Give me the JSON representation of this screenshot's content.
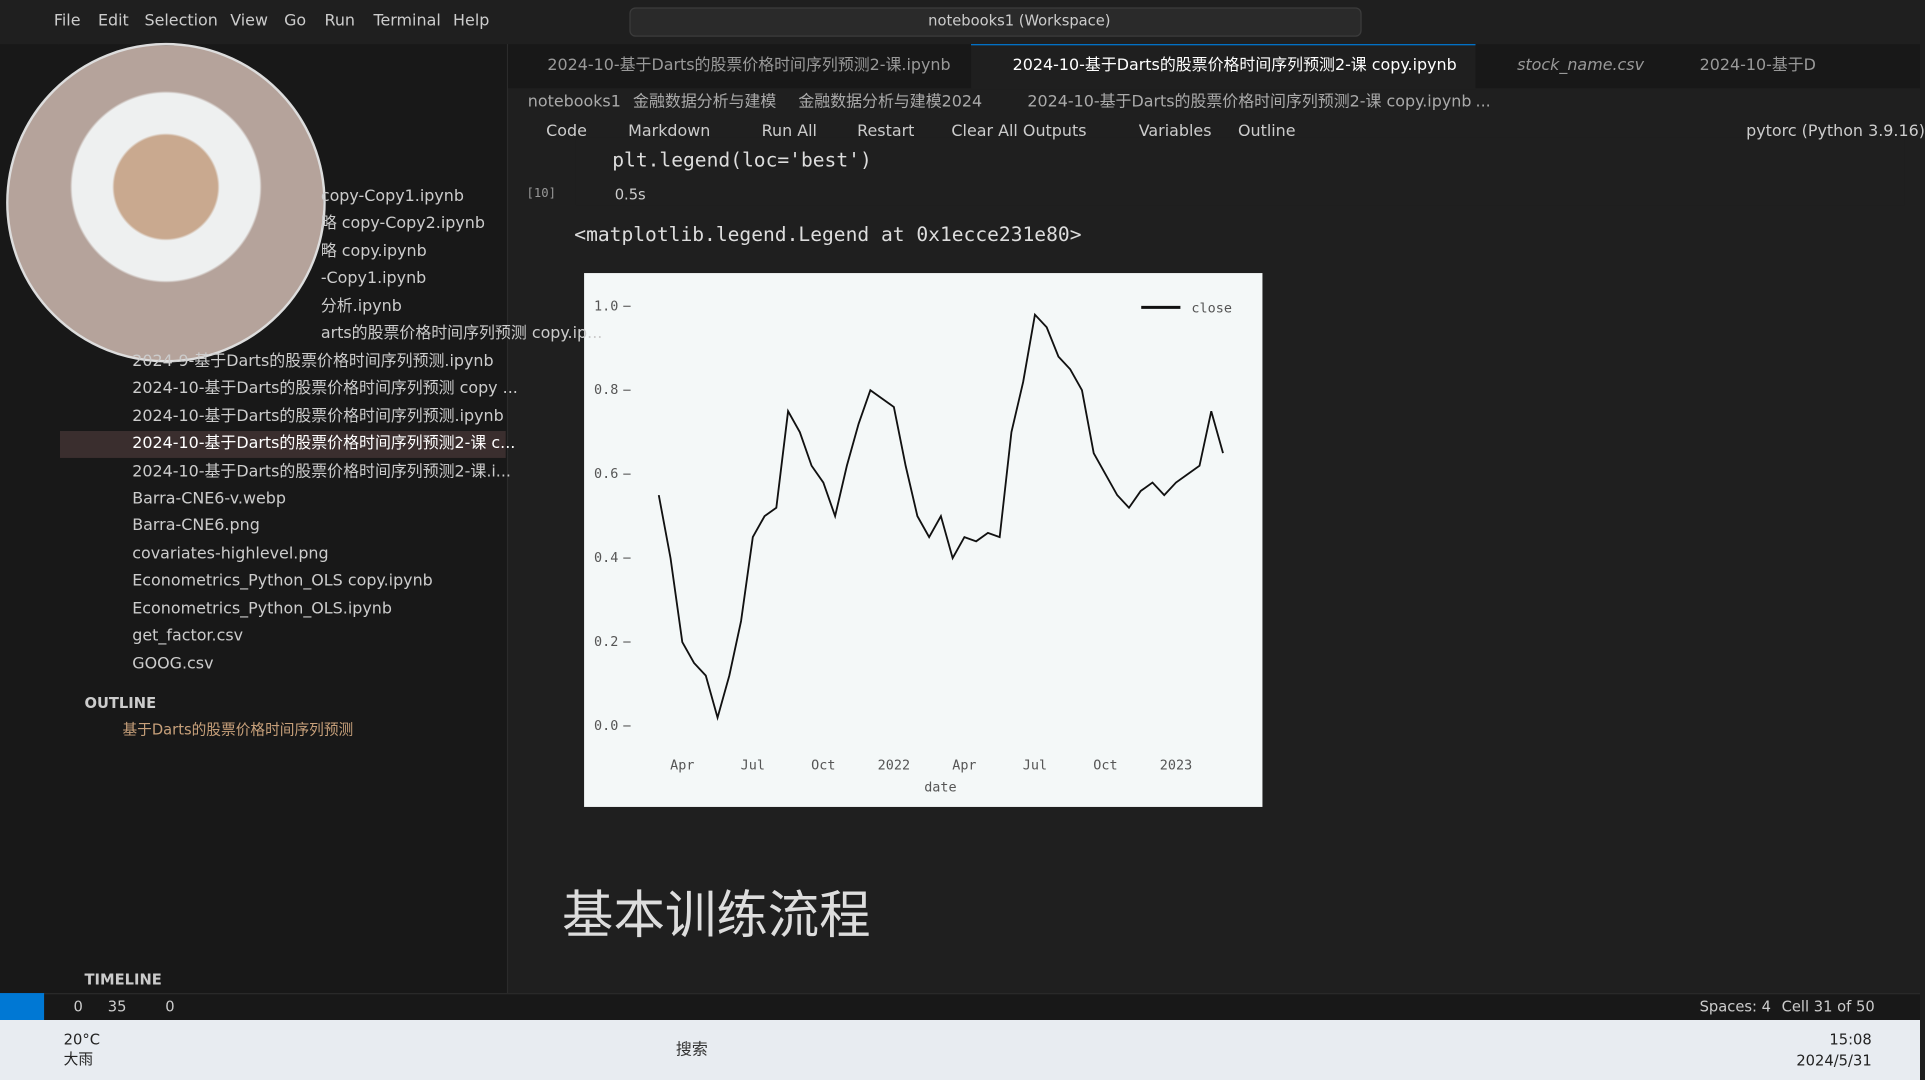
{
  "menu": [
    "File",
    "Edit",
    "Selection",
    "View",
    "Go",
    "Run",
    "Terminal",
    "Help"
  ],
  "search": "notebooks1 (Workspace)",
  "tabs": [
    "2024-10-基于Darts的股票价格时间序列预测2-课.ipynb",
    "2024-10-基于Darts的股票价格时间序列预测2-课 copy.ipynb",
    "stock_name.csv",
    "2024-10-基于D"
  ],
  "explorer_files": [
    "copy-Copy1.ipynb",
    "略 copy-Copy2.ipynb",
    "略 copy.ipynb",
    "-Copy1.ipynb",
    "分析.ipynb",
    "arts的股票价格时间序列预测 copy.ip...",
    "2024-9-基于Darts的股票价格时间序列预测.ipynb",
    "2024-10-基于Darts的股票价格时间序列预测 copy ...",
    "2024-10-基于Darts的股票价格时间序列预测.ipynb",
    "2024-10-基于Darts的股票价格时间序列预测2-课 c...",
    "2024-10-基于Darts的股票价格时间序列预测2-课.i...",
    "Barra-CNE6-v.webp",
    "Barra-CNE6.png",
    "covariates-highlevel.png",
    "Econometrics_Python_OLS copy.ipynb",
    "Econometrics_Python_OLS.ipynb",
    "get_factor.csv",
    "GOOG.csv"
  ],
  "outline": {
    "title": "OUTLINE",
    "item": "基于Darts的股票价格时间序列预测"
  },
  "timeline": "TIMELINE",
  "breadcrumb": [
    "notebooks1",
    "金融数据分析与建模",
    "金融数据分析与建模2024",
    "2024-10-基于Darts的股票价格时间序列预测2-课 copy.ipynb",
    "..."
  ],
  "toolbar": [
    "Code",
    "Markdown",
    "Run All",
    "Restart",
    "Clear All Outputs",
    "Variables",
    "Outline"
  ],
  "kernel": "pytorc (Python 3.9.16)",
  "code": "plt.legend(loc='best')",
  "cell_number": "[10]",
  "exec_time": "0.5s",
  "output_text": "<matplotlib.legend.Legend at 0x1ecce231e80>",
  "chart_data": {
    "type": "line",
    "xlabel": "date",
    "categories": [
      null,
      null,
      "Apr",
      null,
      null,
      null,
      null,
      null,
      "Jul",
      null,
      null,
      null,
      null,
      null,
      "Oct",
      null,
      null,
      null,
      null,
      null,
      "2022",
      null,
      null,
      null,
      null,
      null,
      "Apr",
      null,
      null,
      null,
      null,
      null,
      "Jul",
      null,
      null,
      null,
      null,
      null,
      "Oct",
      null,
      null,
      null,
      null,
      null,
      "2023",
      null,
      null,
      null,
      null
    ],
    "series": [
      {
        "name": "close",
        "color": "#111111",
        "values": [
          0.55,
          0.4,
          0.2,
          0.15,
          0.12,
          0.02,
          0.12,
          0.25,
          0.45,
          0.5,
          0.52,
          0.75,
          0.7,
          0.62,
          0.58,
          0.5,
          0.62,
          0.72,
          0.8,
          0.78,
          0.76,
          0.62,
          0.5,
          0.45,
          0.5,
          0.4,
          0.45,
          0.44,
          0.46,
          0.45,
          0.7,
          0.82,
          0.98,
          0.95,
          0.88,
          0.85,
          0.8,
          0.65,
          0.6,
          0.55,
          0.52,
          0.56,
          0.58,
          0.55,
          0.58,
          0.6,
          0.62,
          0.75,
          0.65
        ]
      }
    ],
    "ylim": [
      -0.05,
      1.05
    ],
    "yticks": [
      {
        "value": 0,
        "label": "0.0"
      },
      0.2,
      0.4,
      0.6,
      0.8,
      {
        "value": 1,
        "label": "1.0"
      }
    ],
    "legend": "upper right",
    "grid": false
  },
  "heading": "基本训练流程",
  "status": {
    "errors": "0",
    "warnings": "35",
    "ports": "0",
    "spaces": "Spaces: 4",
    "cell": "Cell 31 of 50"
  },
  "taskbar": {
    "temp": "20°C",
    "weather": "大雨",
    "search": "搜索",
    "time": "15:08",
    "date": "2024/5/31"
  }
}
